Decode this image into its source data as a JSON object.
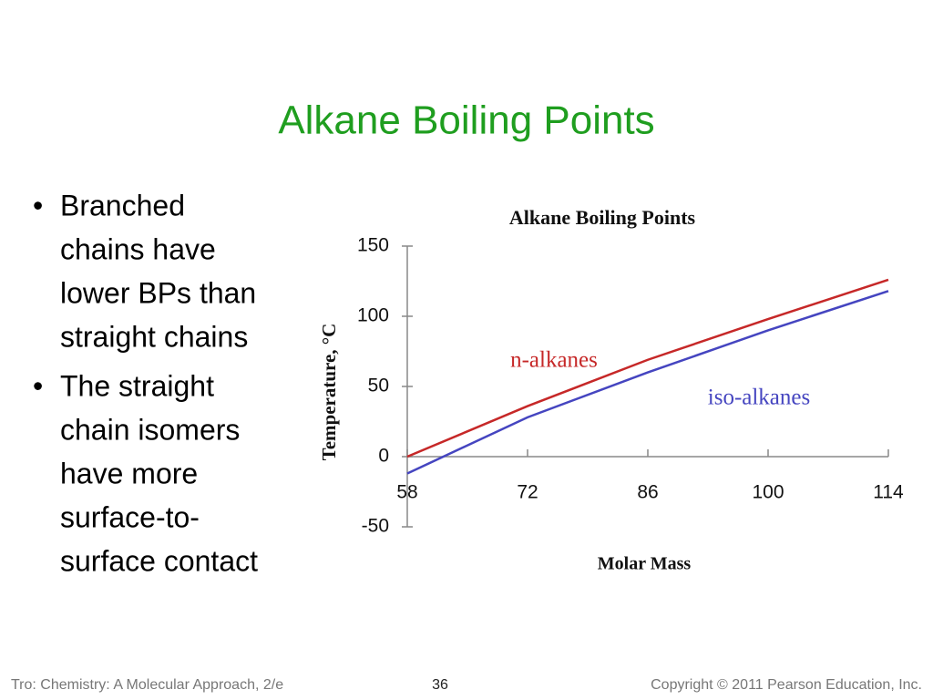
{
  "slide": {
    "title": "Alkane Boiling Points",
    "bullets": [
      [
        "Branched",
        "chains have",
        "lower BPs than",
        "straight chains"
      ],
      [
        "The straight",
        "chain isomers",
        "have more",
        "surface-to-",
        "surface contact"
      ]
    ],
    "footer": {
      "source": "Tro: Chemistry: A Molecular Approach, 2/e",
      "page": "36",
      "copyright": "Copyright © 2011 Pearson Education, Inc."
    }
  },
  "chart_data": {
    "type": "line",
    "title": "Alkane Boiling Points",
    "x_label": "Molar Mass",
    "y_label": "Temperature, °C",
    "x": [
      58,
      72,
      86,
      100,
      114
    ],
    "series": [
      {
        "name": "n-alkanes",
        "color": "#c62828",
        "values": [
          0,
          36,
          69,
          98,
          126
        ]
      },
      {
        "name": "iso-alkanes",
        "color": "#4545c0",
        "values": [
          -12,
          28,
          60,
          90,
          118
        ]
      }
    ],
    "xlim": [
      58,
      114
    ],
    "xticks": [
      58,
      72,
      86,
      100,
      114
    ],
    "ylim": [
      -50,
      150
    ],
    "yticks": [
      -50,
      0,
      50,
      100,
      150
    ],
    "grid": false
  }
}
